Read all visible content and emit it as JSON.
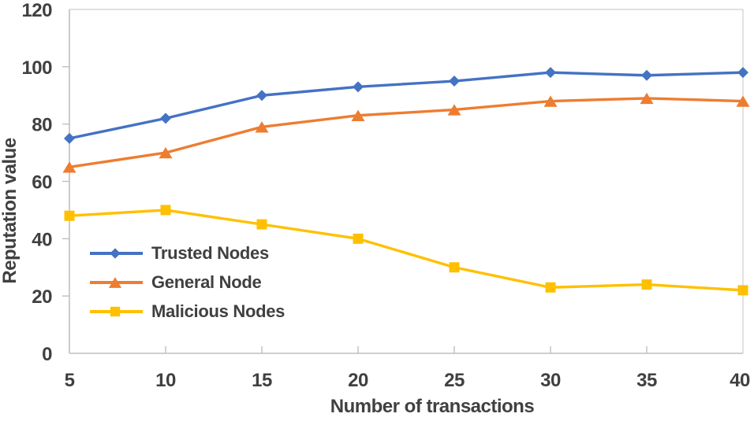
{
  "chart_data": {
    "type": "line",
    "x": [
      5,
      10,
      15,
      20,
      25,
      30,
      35,
      40
    ],
    "xticks": [
      5,
      10,
      15,
      20,
      25,
      30,
      35,
      40
    ],
    "yticks": [
      0,
      20,
      40,
      60,
      80,
      100,
      120
    ],
    "xlim": [
      5,
      40
    ],
    "ylim": [
      0,
      120
    ],
    "xlabel": "Number of transactions",
    "ylabel": "Reputation value",
    "grid": false,
    "legend_position": "inside-left",
    "series": [
      {
        "name": "Trusted Nodes",
        "color": "#4472C4",
        "marker": "diamond",
        "values": [
          75,
          82,
          90,
          93,
          95,
          98,
          97,
          98
        ]
      },
      {
        "name": "General Node",
        "color": "#ED7D31",
        "marker": "triangle",
        "values": [
          65,
          70,
          79,
          83,
          85,
          88,
          89,
          88
        ]
      },
      {
        "name": "Malicious Nodes",
        "color": "#FFC000",
        "marker": "square",
        "values": [
          48,
          50,
          45,
          40,
          30,
          23,
          24,
          22
        ]
      }
    ]
  },
  "colors": {
    "axis_line": "#BFBFBF",
    "plot_border": "#D6D6D6",
    "label_text": "#404040",
    "background": "#FFFFFF"
  }
}
